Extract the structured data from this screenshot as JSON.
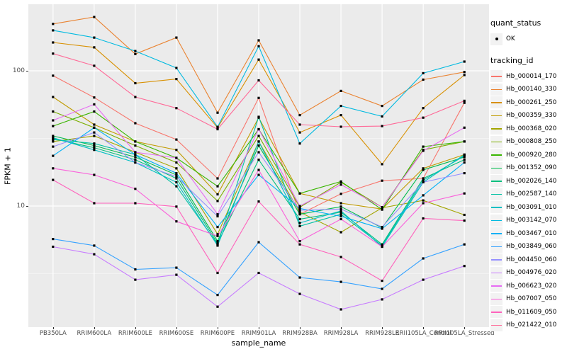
{
  "style": {
    "panel_bg": "#EBEBEB",
    "grid_color": "#FFFFFF",
    "tick_color": "#333333",
    "tick_label_color": "#4D4D4D",
    "point_color": "#000000",
    "legend_key_bg": "#F2F2F2"
  },
  "axes": {
    "y": {
      "title": "FPKM + 1",
      "scale": "log10",
      "tick_labels": [
        "100",
        "10"
      ],
      "major_breaks": [
        100,
        10
      ],
      "minor_breaks": [
        316.23,
        31.62,
        3.162
      ]
    },
    "x": {
      "title": "sample_name"
    }
  },
  "legend": {
    "quant_status": {
      "title": "quant_status",
      "items": [
        {
          "label": "OK",
          "symbol": "point"
        }
      ]
    },
    "tracking_id": {
      "title": "tracking_id"
    }
  },
  "chart_data": {
    "type": "line",
    "title": "",
    "xlabel": "sample_name",
    "ylabel": "FPKM + 1",
    "y_scale": "log10",
    "y_domain": [
      1.25,
      320
    ],
    "grid": true,
    "legend_position": "right",
    "marker": "black point on every vertex (quant_status OK)",
    "categories": [
      "PB350LA",
      "RRIM600LA",
      "RRIM600LE",
      "RRIM600SE",
      "RRIM600PE",
      "RRIM901LA",
      "RRIM928BA",
      "RRIM928LA",
      "RRIM928LE",
      "RRII105LA_Control",
      "RRII105LA_Stressed"
    ],
    "series": [
      {
        "name": "Hb_000014_170",
        "color": "#F8766D",
        "values": [
          92,
          63.5,
          41,
          31,
          16,
          63,
          8.7,
          12.3,
          15.4,
          16,
          58
        ]
      },
      {
        "name": "Hb_000140_330",
        "color": "#EA8331",
        "values": [
          222,
          250,
          133,
          176,
          49,
          168,
          47,
          71,
          55,
          86,
          98
        ]
      },
      {
        "name": "Hb_000261_250",
        "color": "#D89000",
        "values": [
          162,
          149,
          81,
          87,
          38,
          121,
          35,
          47,
          20.4,
          53,
          93
        ]
      },
      {
        "name": "Hb_000359_330",
        "color": "#C09B00",
        "values": [
          64,
          40,
          30,
          26,
          12.2,
          45,
          12.4,
          10.5,
          9.5,
          19,
          24
        ]
      },
      {
        "name": "Hb_000368_020",
        "color": "#A3A500",
        "values": [
          30,
          33,
          25,
          19,
          6.2,
          30,
          9.0,
          6.4,
          9.7,
          11,
          8.6
        ]
      },
      {
        "name": "Hb_000808_250",
        "color": "#7CAE00",
        "values": [
          50,
          38,
          28,
          21,
          10.9,
          33,
          9.8,
          15,
          9.8,
          26,
          30
        ]
      },
      {
        "name": "Hb_000920_280",
        "color": "#39B600",
        "values": [
          39,
          50,
          30,
          22.7,
          14,
          37,
          12.4,
          15.2,
          9.4,
          27.5,
          30
        ]
      },
      {
        "name": "Hb_001352_090",
        "color": "#00BB4E",
        "values": [
          33,
          28,
          23,
          17,
          5.5,
          28,
          8.7,
          9.9,
          6.9,
          18.5,
          23
        ]
      },
      {
        "name": "Hb_002026_140",
        "color": "#00BF7D",
        "values": [
          31.5,
          27,
          22,
          16,
          5.3,
          22,
          8.0,
          9.0,
          5.2,
          16,
          22
        ]
      },
      {
        "name": "Hb_002587_140",
        "color": "#00C1A3",
        "values": [
          31,
          29,
          24,
          14,
          5.2,
          45.7,
          7.1,
          8.7,
          5.1,
          15.5,
          23.5
        ]
      },
      {
        "name": "Hb_003091_010",
        "color": "#00BFC4",
        "values": [
          32,
          26,
          21,
          15,
          5.1,
          30,
          7.5,
          9.2,
          5.0,
          15,
          24
        ]
      },
      {
        "name": "Hb_003142_070",
        "color": "#00BAE0",
        "values": [
          199,
          176,
          140,
          105,
          38.5,
          152,
          29,
          55,
          46,
          96,
          117
        ]
      },
      {
        "name": "Hb_003467_010",
        "color": "#00B0F6",
        "values": [
          23.5,
          38,
          24,
          17.5,
          7.0,
          17,
          9.6,
          8.4,
          6.8,
          12,
          21
        ]
      },
      {
        "name": "Hb_003849_060",
        "color": "#35A2FF",
        "values": [
          5.7,
          5.1,
          3.4,
          3.5,
          2.2,
          5.4,
          2.96,
          2.75,
          2.44,
          4.1,
          5.2
        ]
      },
      {
        "name": "Hb_004450_060",
        "color": "#9590FF",
        "values": [
          27.5,
          35,
          21,
          16.5,
          8.4,
          25,
          9.3,
          9.5,
          7.0,
          15,
          17.5
        ]
      },
      {
        "name": "Hb_004976_020",
        "color": "#C77CFF",
        "values": [
          5.0,
          4.4,
          2.85,
          3.1,
          1.8,
          3.2,
          2.24,
          1.72,
          2.04,
          2.85,
          3.6
        ]
      },
      {
        "name": "Hb_006623_020",
        "color": "#E76BF3",
        "values": [
          43,
          56.5,
          25,
          22.7,
          8.7,
          37,
          10,
          14.4,
          9.8,
          25.6,
          38
        ]
      },
      {
        "name": "Hb_007007_050",
        "color": "#FA62DB",
        "values": [
          19,
          17,
          13.4,
          7.7,
          6.0,
          18.5,
          5.5,
          8.0,
          5.0,
          10.5,
          12.4
        ]
      },
      {
        "name": "Hb_011609_050",
        "color": "#FF62BC",
        "values": [
          15.6,
          10.5,
          10.5,
          9.9,
          3.2,
          10.8,
          5.2,
          4.2,
          2.8,
          8.1,
          7.8
        ]
      },
      {
        "name": "Hb_021422_010",
        "color": "#FF6A98",
        "values": [
          134,
          109,
          64,
          53,
          37,
          85,
          40,
          38.6,
          39,
          45,
          60
        ]
      }
    ]
  }
}
